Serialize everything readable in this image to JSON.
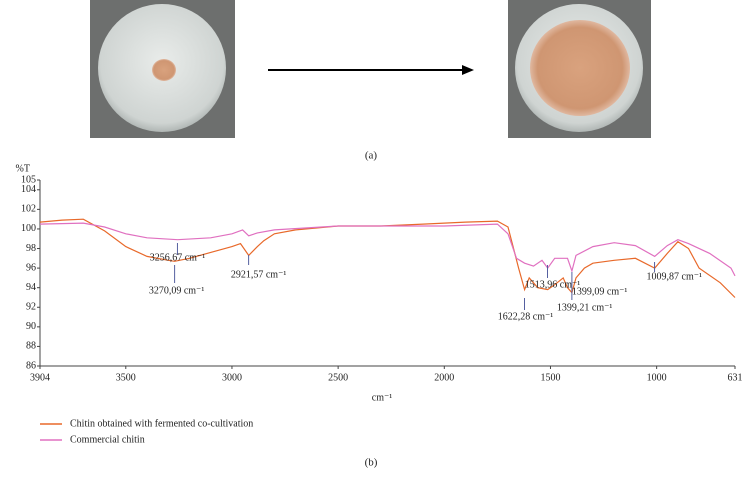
{
  "panel_a": {
    "caption": "(a)"
  },
  "chart_data": {
    "type": "line",
    "caption": "(b)",
    "xlabel": "cm⁻¹",
    "ylabel": "%T",
    "xlim": [
      3904,
      631
    ],
    "ylim": [
      86,
      105
    ],
    "xticks": [
      3904,
      3500,
      3000,
      2500,
      2000,
      1500,
      1000,
      631
    ],
    "yticks": [
      86,
      88,
      90,
      92,
      94,
      96,
      98,
      100,
      102,
      104,
      105
    ],
    "series": [
      {
        "name": "Chitin obtained with fermented co-cultivation",
        "color": "#e8692a",
        "x": [
          3904,
          3800,
          3700,
          3600,
          3500,
          3400,
          3300,
          3270,
          3200,
          3100,
          3000,
          2960,
          2921,
          2880,
          2850,
          2800,
          2700,
          2500,
          2300,
          2100,
          1900,
          1750,
          1700,
          1680,
          1650,
          1622,
          1600,
          1560,
          1513,
          1480,
          1440,
          1420,
          1399,
          1380,
          1340,
          1300,
          1200,
          1100,
          1009,
          950,
          900,
          850,
          800,
          700,
          631
        ],
        "values": [
          100.7,
          100.9,
          101,
          99.8,
          98.2,
          97.2,
          96.8,
          96.7,
          97,
          97.6,
          98.2,
          98.5,
          97.3,
          98.2,
          98.8,
          99.5,
          99.9,
          100.3,
          100.3,
          100.5,
          100.7,
          100.8,
          100.2,
          98.5,
          96,
          93.8,
          95,
          94,
          93.8,
          94.3,
          95,
          94,
          93.5,
          95,
          96,
          96.5,
          96.8,
          97,
          96,
          97.5,
          98.7,
          98,
          96,
          94.5,
          93
        ]
      },
      {
        "name": "Commercial chitin",
        "color": "#e070c0",
        "x": [
          3904,
          3700,
          3600,
          3500,
          3400,
          3256,
          3100,
          3000,
          2950,
          2921,
          2880,
          2800,
          2500,
          2000,
          1750,
          1700,
          1660,
          1622,
          1580,
          1540,
          1513,
          1480,
          1420,
          1399,
          1380,
          1300,
          1200,
          1100,
          1009,
          950,
          900,
          850,
          750,
          650,
          631
        ],
        "values": [
          100.5,
          100.6,
          100.2,
          99.5,
          99.1,
          98.9,
          99.1,
          99.5,
          99.9,
          99.3,
          99.6,
          99.9,
          100.3,
          100.3,
          100.5,
          99.5,
          97,
          96.5,
          96.2,
          96.8,
          96,
          97,
          97,
          95.7,
          97.3,
          98.2,
          98.6,
          98.3,
          97.2,
          98.3,
          98.9,
          98.5,
          97.5,
          96,
          95.2
        ]
      }
    ],
    "annotations": [
      {
        "label": "3256,67 cm⁻¹",
        "x": 3256.67
      },
      {
        "label": "3270,09 cm⁻¹",
        "x": 3270.09
      },
      {
        "label": "2921,57 cm⁻¹",
        "x": 2921.57
      },
      {
        "label": "1513,96 cm⁻¹",
        "x": 1513.96
      },
      {
        "label": "1399,09 cm⁻¹",
        "x": 1399.09
      },
      {
        "label": "1399,21 cm⁻¹",
        "x": 1399.21
      },
      {
        "label": "1622,28 cm⁻¹",
        "x": 1622.28
      },
      {
        "label": "1009,87 cm⁻¹",
        "x": 1009.87
      }
    ]
  }
}
